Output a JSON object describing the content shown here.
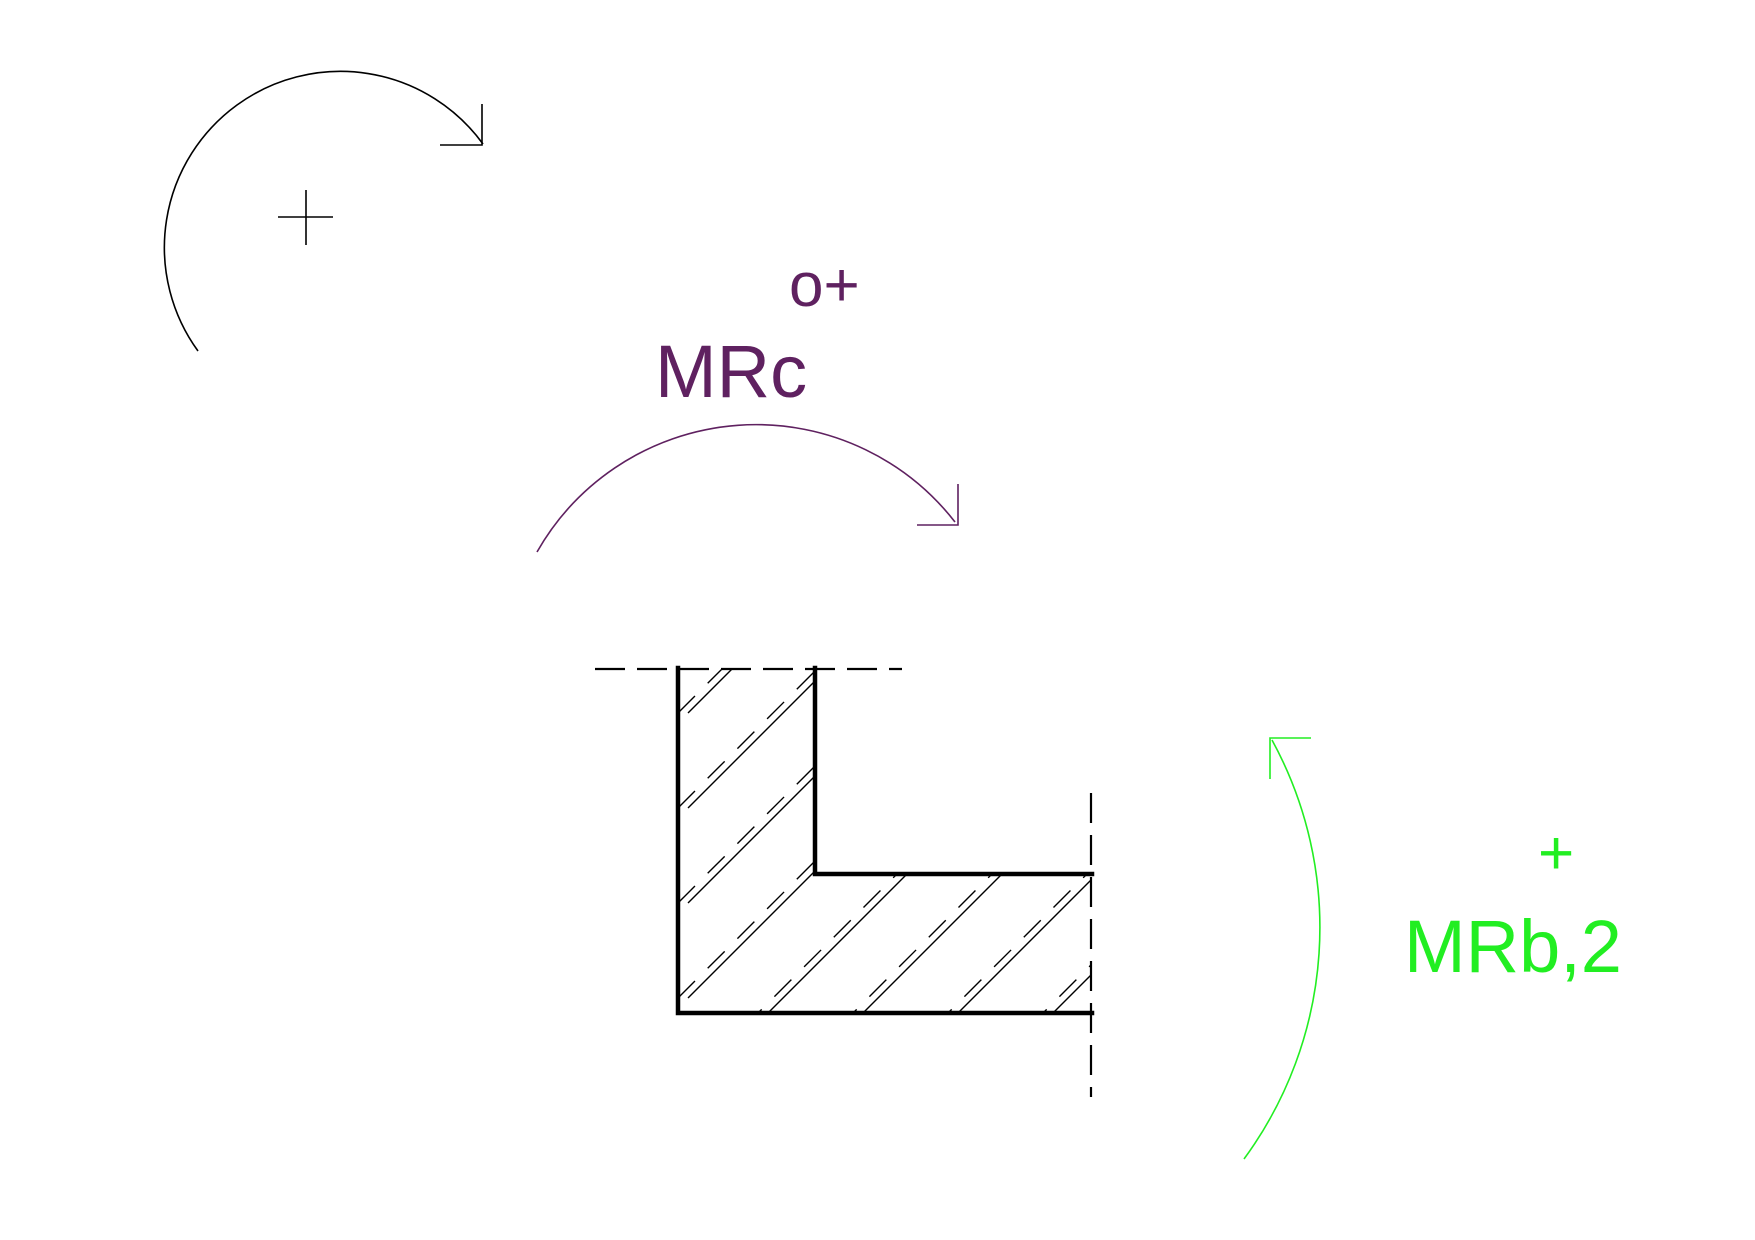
{
  "colors": {
    "background": "#ffffff",
    "reference_sign": "#000000",
    "section": "#000000",
    "moment_c": "#5f2160",
    "moment_b2": "#22ee22"
  },
  "labels": {
    "moment_c_name": "MRc",
    "moment_c_sign": "o+",
    "moment_b2_name": "MRb,2",
    "moment_b2_sign": "+"
  }
}
